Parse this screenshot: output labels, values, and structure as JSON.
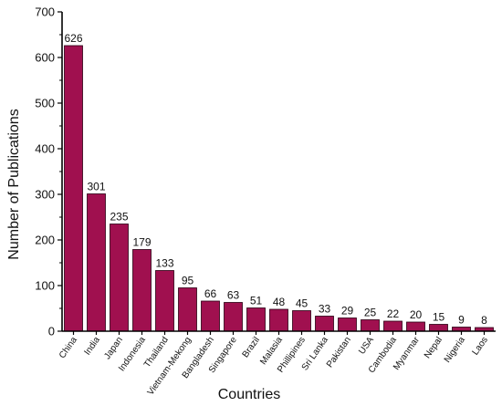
{
  "chart_data": {
    "type": "bar",
    "xlabel": "Countries",
    "ylabel": "Number of Publications",
    "ylim": [
      0,
      700
    ],
    "yticks": [
      0,
      100,
      200,
      300,
      400,
      500,
      600,
      700
    ],
    "categories": [
      "China",
      "India",
      "Japan",
      "Indonesia",
      "Thailand",
      "Vietnam-Mekong",
      "Bangladesh",
      "Singapore",
      "Brazil",
      "Malasia",
      "Phillipines",
      "Sri Lanka",
      "Pakistan",
      "USA",
      "Cambodia",
      "Myanmar",
      "Nepal",
      "Nigeria",
      "Laos"
    ],
    "values": [
      626,
      301,
      235,
      179,
      133,
      95,
      66,
      63,
      51,
      48,
      45,
      33,
      29,
      25,
      22,
      20,
      15,
      9,
      8
    ],
    "bar_color": "#a0104f",
    "grid": false,
    "legend": "none"
  }
}
